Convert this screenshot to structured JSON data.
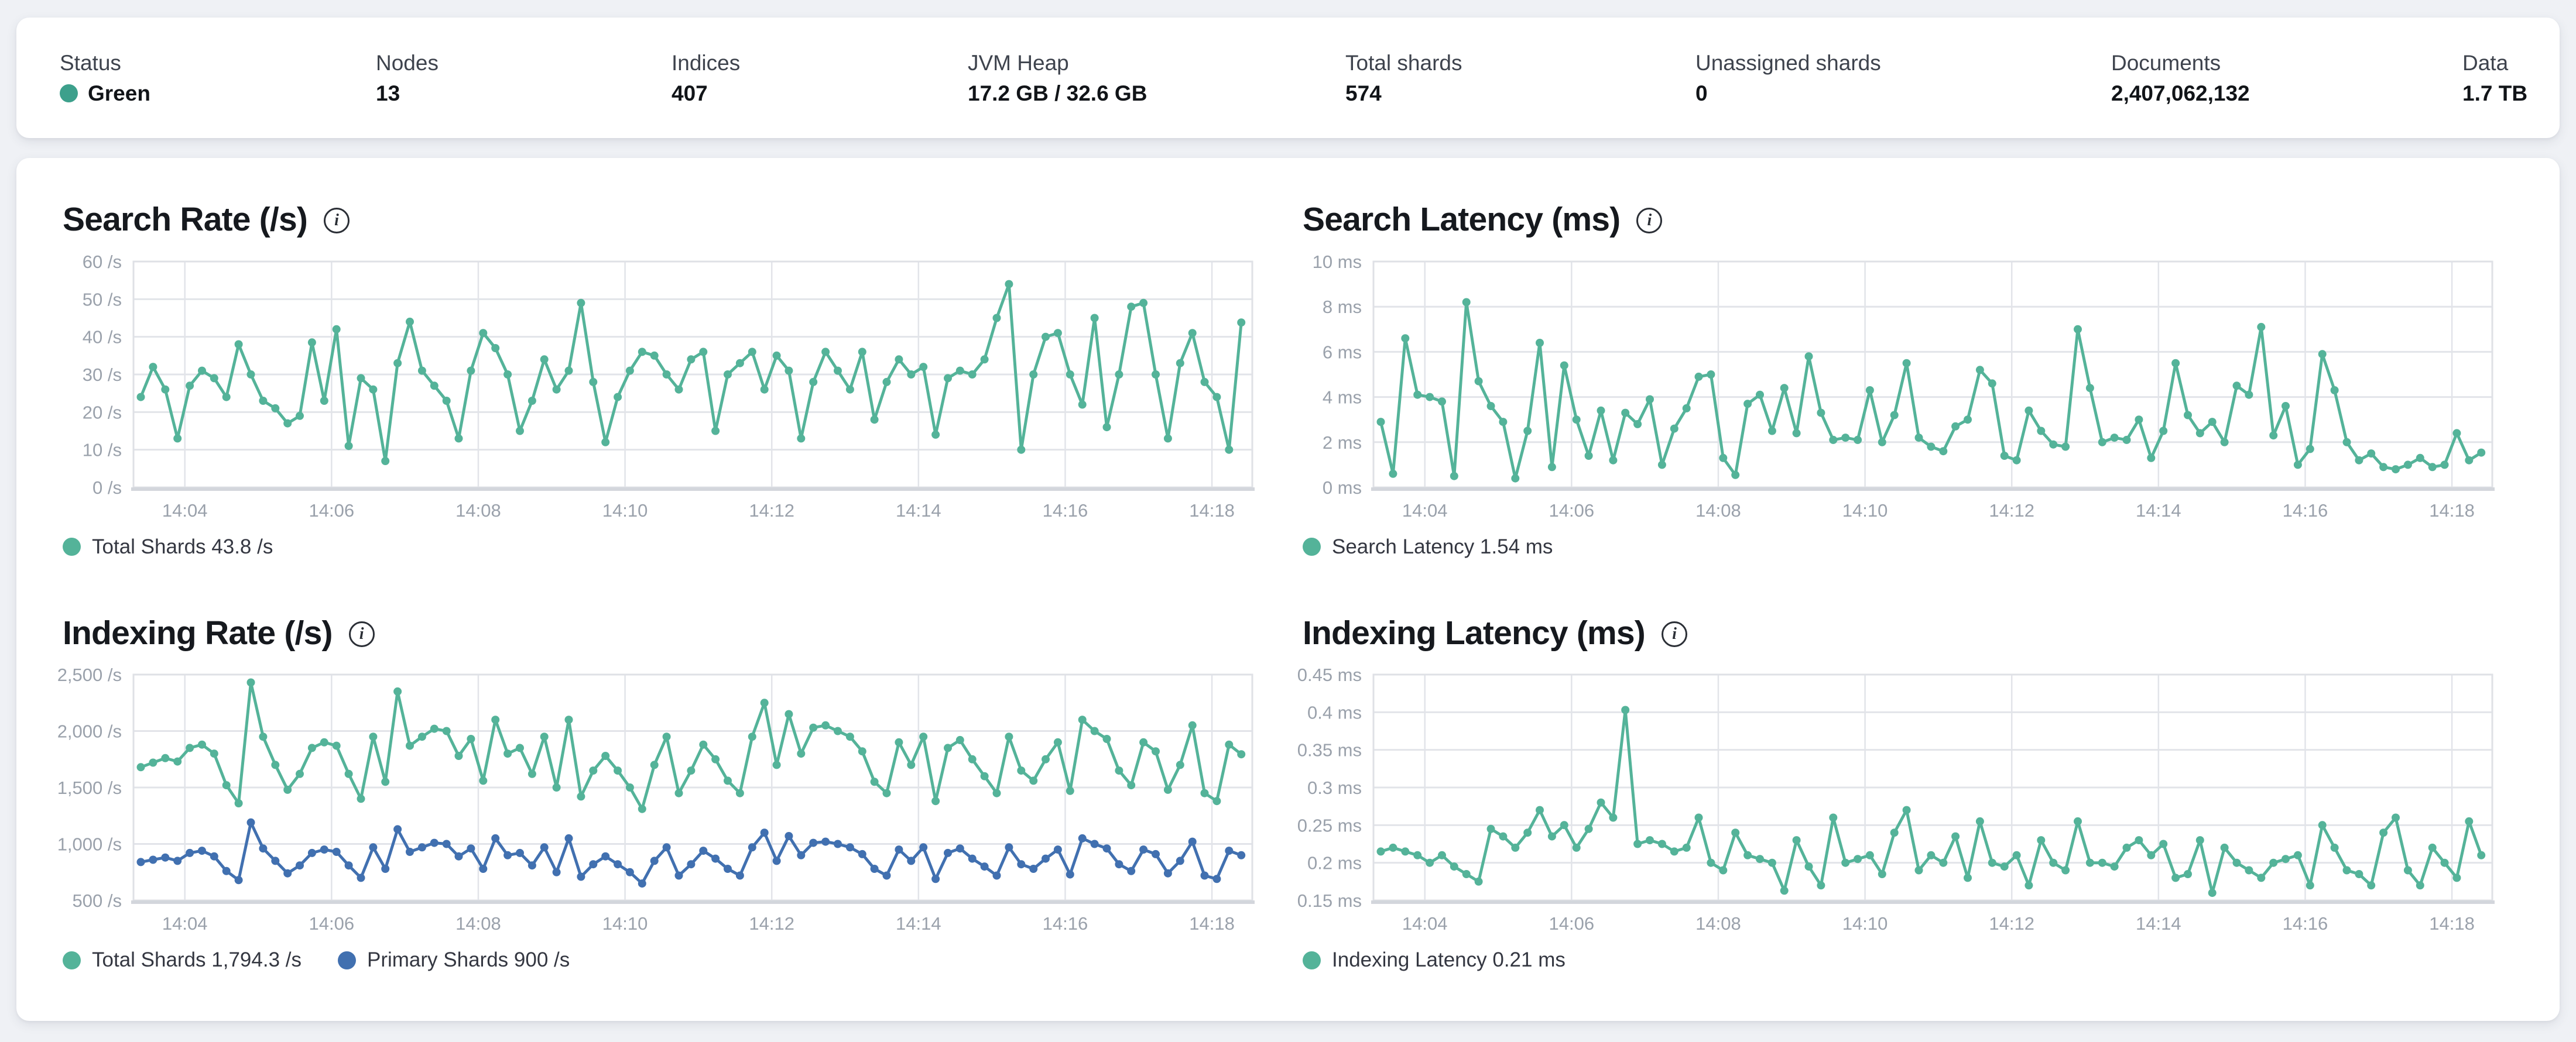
{
  "page": {
    "background": "#eff1f5"
  },
  "icons": {
    "info_glyph": "i"
  },
  "colors": {
    "teal": "#54B399",
    "blue": "#4170B0",
    "status_green_dot": "#3DA08C",
    "gridline": "#E2E4E9",
    "plot_border": "#DFE1E6",
    "baseline": "#D3D6DC",
    "axis_text": "#9AA1AB"
  },
  "header": {
    "stats": [
      {
        "label": "Status",
        "value": "Green",
        "dot_color": "#3DA08C"
      },
      {
        "label": "Nodes",
        "value": "13"
      },
      {
        "label": "Indices",
        "value": "407"
      },
      {
        "label": "JVM Heap",
        "value": "17.2 GB / 32.6 GB"
      },
      {
        "label": "Total shards",
        "value": "574"
      },
      {
        "label": "Unassigned shards",
        "value": "0"
      },
      {
        "label": "Documents",
        "value": "2,407,062,132"
      },
      {
        "label": "Data",
        "value": "1.7 TB"
      }
    ]
  },
  "chart_data": [
    {
      "type": "line",
      "title": "Search Rate (/s)",
      "xlabel": "",
      "ylabel": "/s",
      "grid": true,
      "legend_position": "bottom",
      "x_axis": {
        "domain": [
          3.3,
          18.55
        ],
        "ticks": [
          {
            "t": 4,
            "label": "14:04"
          },
          {
            "t": 6,
            "label": "14:06"
          },
          {
            "t": 8,
            "label": "14:08"
          },
          {
            "t": 10,
            "label": "14:10"
          },
          {
            "t": 12,
            "label": "14:12"
          },
          {
            "t": 14,
            "label": "14:14"
          },
          {
            "t": 16,
            "label": "14:16"
          },
          {
            "t": 18,
            "label": "14:18"
          }
        ]
      },
      "y_axis": {
        "lim": [
          0,
          60
        ],
        "ticks": [
          {
            "v": 0,
            "label": "0 /s"
          },
          {
            "v": 10,
            "label": "10 /s"
          },
          {
            "v": 20,
            "label": "20 /s"
          },
          {
            "v": 30,
            "label": "30 /s"
          },
          {
            "v": 40,
            "label": "40 /s"
          },
          {
            "v": 50,
            "label": "50 /s"
          },
          {
            "v": 60,
            "label": "60 /s"
          }
        ]
      },
      "x_time": {
        "start": 3.4,
        "end": 18.4
      },
      "series": [
        {
          "name": "Total Shards",
          "color": "#54B399",
          "current": "43.8 /s",
          "values": [
            24,
            32,
            26,
            13,
            27,
            31,
            29,
            24,
            38,
            30,
            23,
            21,
            17,
            19,
            38.5,
            23,
            42,
            11,
            29,
            26,
            7,
            33,
            44,
            31,
            27,
            23,
            13,
            31,
            41,
            37,
            30,
            15,
            23,
            34,
            26,
            31,
            49,
            28,
            12,
            24,
            31,
            36,
            35,
            30,
            26,
            34,
            36,
            15,
            30,
            33,
            36,
            26,
            35,
            31,
            13,
            28,
            36,
            31,
            26,
            36,
            18,
            28,
            34,
            30,
            32,
            14,
            29,
            31,
            30,
            34,
            45,
            54,
            10,
            30,
            40,
            41,
            30,
            22,
            45,
            16,
            30,
            48,
            49,
            30,
            13,
            33,
            41,
            28,
            24,
            10,
            43.8
          ]
        }
      ],
      "legend": [
        {
          "label": "Total Shards 43.8 /s",
          "color": "#54B399"
        }
      ]
    },
    {
      "type": "line",
      "title": "Search Latency (ms)",
      "xlabel": "",
      "ylabel": "ms",
      "grid": true,
      "legend_position": "bottom",
      "x_axis": {
        "domain": [
          3.3,
          18.55
        ],
        "ticks": [
          {
            "t": 4,
            "label": "14:04"
          },
          {
            "t": 6,
            "label": "14:06"
          },
          {
            "t": 8,
            "label": "14:08"
          },
          {
            "t": 10,
            "label": "14:10"
          },
          {
            "t": 12,
            "label": "14:12"
          },
          {
            "t": 14,
            "label": "14:14"
          },
          {
            "t": 16,
            "label": "14:16"
          },
          {
            "t": 18,
            "label": "14:18"
          }
        ]
      },
      "y_axis": {
        "lim": [
          0,
          10
        ],
        "ticks": [
          {
            "v": 0,
            "label": "0 ms"
          },
          {
            "v": 2,
            "label": "2 ms"
          },
          {
            "v": 4,
            "label": "4 ms"
          },
          {
            "v": 6,
            "label": "6 ms"
          },
          {
            "v": 8,
            "label": "8 ms"
          },
          {
            "v": 10,
            "label": "10 ms"
          }
        ]
      },
      "x_time": {
        "start": 3.4,
        "end": 18.4
      },
      "series": [
        {
          "name": "Search Latency",
          "color": "#54B399",
          "current": "1.54 ms",
          "values": [
            2.9,
            0.6,
            6.6,
            4.1,
            4.0,
            3.8,
            0.5,
            8.2,
            4.7,
            3.6,
            2.9,
            0.4,
            2.5,
            6.4,
            0.9,
            5.4,
            3.0,
            1.4,
            3.4,
            1.2,
            3.3,
            2.8,
            3.9,
            1.0,
            2.6,
            3.5,
            4.9,
            5.0,
            1.3,
            0.55,
            3.7,
            4.1,
            2.5,
            4.4,
            2.4,
            5.8,
            3.3,
            2.1,
            2.2,
            2.1,
            4.3,
            2.0,
            3.2,
            5.5,
            2.2,
            1.8,
            1.6,
            2.7,
            3.0,
            5.2,
            4.6,
            1.4,
            1.2,
            3.4,
            2.5,
            1.9,
            1.8,
            7.0,
            4.4,
            2.0,
            2.2,
            2.1,
            3.0,
            1.3,
            2.5,
            5.5,
            3.2,
            2.4,
            2.9,
            2.0,
            4.5,
            4.1,
            7.1,
            2.3,
            3.6,
            1.0,
            1.7,
            5.9,
            4.3,
            2.0,
            1.2,
            1.5,
            0.9,
            0.8,
            1.0,
            1.3,
            0.9,
            1.0,
            2.4,
            1.2,
            1.54
          ]
        }
      ],
      "legend": [
        {
          "label": "Search Latency 1.54 ms",
          "color": "#54B399"
        }
      ]
    },
    {
      "type": "line",
      "title": "Indexing Rate (/s)",
      "xlabel": "",
      "ylabel": "/s",
      "grid": true,
      "legend_position": "bottom",
      "x_axis": {
        "domain": [
          3.3,
          18.55
        ],
        "ticks": [
          {
            "t": 4,
            "label": "14:04"
          },
          {
            "t": 6,
            "label": "14:06"
          },
          {
            "t": 8,
            "label": "14:08"
          },
          {
            "t": 10,
            "label": "14:10"
          },
          {
            "t": 12,
            "label": "14:12"
          },
          {
            "t": 14,
            "label": "14:14"
          },
          {
            "t": 16,
            "label": "14:16"
          },
          {
            "t": 18,
            "label": "14:18"
          }
        ]
      },
      "y_axis": {
        "lim": [
          500,
          2500
        ],
        "ticks": [
          {
            "v": 500,
            "label": "500 /s"
          },
          {
            "v": 1000,
            "label": "1,000 /s"
          },
          {
            "v": 1500,
            "label": "1,500 /s"
          },
          {
            "v": 2000,
            "label": "2,000 /s"
          },
          {
            "v": 2500,
            "label": "2,500 /s"
          }
        ]
      },
      "x_time": {
        "start": 3.4,
        "end": 18.4
      },
      "series": [
        {
          "name": "Total Shards",
          "color": "#54B399",
          "current": "1,794.3 /s",
          "values": [
            1680,
            1720,
            1760,
            1730,
            1850,
            1880,
            1800,
            1520,
            1360,
            2430,
            1950,
            1700,
            1480,
            1620,
            1850,
            1900,
            1870,
            1620,
            1400,
            1950,
            1550,
            2350,
            1870,
            1950,
            2020,
            2000,
            1780,
            1930,
            1560,
            2100,
            1800,
            1850,
            1620,
            1950,
            1500,
            2100,
            1420,
            1650,
            1780,
            1650,
            1500,
            1310,
            1700,
            1950,
            1450,
            1650,
            1880,
            1750,
            1560,
            1450,
            1950,
            2250,
            1700,
            2150,
            1800,
            2030,
            2050,
            2000,
            1950,
            1820,
            1550,
            1450,
            1900,
            1700,
            1950,
            1380,
            1850,
            1920,
            1750,
            1600,
            1450,
            1950,
            1650,
            1560,
            1750,
            1900,
            1470,
            2100,
            2000,
            1930,
            1650,
            1520,
            1900,
            1820,
            1480,
            1700,
            2050,
            1450,
            1380,
            1880,
            1794.3
          ]
        },
        {
          "name": "Primary Shards",
          "color": "#4170B0",
          "current": "900 /s",
          "values": [
            840,
            860,
            880,
            850,
            920,
            940,
            890,
            760,
            680,
            1190,
            960,
            850,
            740,
            810,
            920,
            950,
            930,
            810,
            700,
            970,
            780,
            1130,
            930,
            970,
            1010,
            1000,
            890,
            960,
            780,
            1050,
            900,
            920,
            810,
            970,
            750,
            1050,
            710,
            820,
            890,
            820,
            750,
            650,
            850,
            970,
            720,
            820,
            940,
            870,
            780,
            720,
            970,
            1100,
            850,
            1070,
            900,
            1010,
            1020,
            1000,
            970,
            910,
            780,
            720,
            950,
            850,
            970,
            690,
            920,
            960,
            870,
            800,
            720,
            970,
            820,
            780,
            870,
            950,
            730,
            1050,
            1000,
            960,
            820,
            760,
            950,
            910,
            740,
            850,
            1020,
            720,
            690,
            940,
            900
          ]
        }
      ],
      "legend": [
        {
          "label": "Total Shards 1,794.3 /s",
          "color": "#54B399"
        },
        {
          "label": "Primary Shards 900 /s",
          "color": "#4170B0"
        }
      ]
    },
    {
      "type": "line",
      "title": "Indexing Latency (ms)",
      "xlabel": "",
      "ylabel": "ms",
      "grid": true,
      "legend_position": "bottom",
      "x_axis": {
        "domain": [
          3.3,
          18.55
        ],
        "ticks": [
          {
            "t": 4,
            "label": "14:04"
          },
          {
            "t": 6,
            "label": "14:06"
          },
          {
            "t": 8,
            "label": "14:08"
          },
          {
            "t": 10,
            "label": "14:10"
          },
          {
            "t": 12,
            "label": "14:12"
          },
          {
            "t": 14,
            "label": "14:14"
          },
          {
            "t": 16,
            "label": "14:16"
          },
          {
            "t": 18,
            "label": "14:18"
          }
        ]
      },
      "y_axis": {
        "lim": [
          0.15,
          0.45
        ],
        "ticks": [
          {
            "v": 0.15,
            "label": "0.15 ms"
          },
          {
            "v": 0.2,
            "label": "0.2 ms"
          },
          {
            "v": 0.25,
            "label": "0.25 ms"
          },
          {
            "v": 0.3,
            "label": "0.3 ms"
          },
          {
            "v": 0.35,
            "label": "0.35 ms"
          },
          {
            "v": 0.4,
            "label": "0.4 ms"
          },
          {
            "v": 0.45,
            "label": "0.45 ms"
          }
        ]
      },
      "x_time": {
        "start": 3.4,
        "end": 18.4
      },
      "series": [
        {
          "name": "Indexing Latency",
          "color": "#54B399",
          "current": "0.21 ms",
          "values": [
            0.215,
            0.22,
            0.215,
            0.21,
            0.2,
            0.21,
            0.195,
            0.185,
            0.175,
            0.245,
            0.235,
            0.22,
            0.24,
            0.27,
            0.235,
            0.25,
            0.22,
            0.245,
            0.28,
            0.26,
            0.403,
            0.225,
            0.23,
            0.225,
            0.215,
            0.22,
            0.26,
            0.2,
            0.19,
            0.24,
            0.21,
            0.205,
            0.2,
            0.163,
            0.23,
            0.195,
            0.17,
            0.26,
            0.2,
            0.205,
            0.21,
            0.185,
            0.24,
            0.27,
            0.19,
            0.21,
            0.2,
            0.235,
            0.18,
            0.255,
            0.2,
            0.195,
            0.21,
            0.17,
            0.23,
            0.2,
            0.19,
            0.255,
            0.2,
            0.2,
            0.195,
            0.22,
            0.23,
            0.21,
            0.225,
            0.18,
            0.185,
            0.23,
            0.16,
            0.22,
            0.2,
            0.19,
            0.18,
            0.2,
            0.205,
            0.21,
            0.17,
            0.25,
            0.22,
            0.19,
            0.185,
            0.17,
            0.24,
            0.26,
            0.19,
            0.17,
            0.22,
            0.2,
            0.18,
            0.255,
            0.21
          ]
        }
      ],
      "legend": [
        {
          "label": "Indexing Latency 0.21 ms",
          "color": "#54B399"
        }
      ]
    }
  ]
}
